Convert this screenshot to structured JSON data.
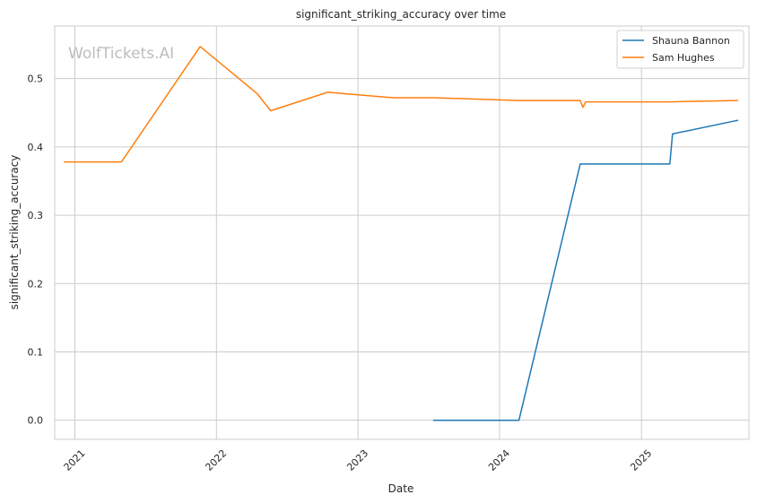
{
  "chart_data": {
    "type": "line",
    "title": "significant_striking_accuracy over time",
    "xlabel": "Date",
    "ylabel": "significant_striking_accuracy",
    "watermark": "WolfTickets.AI",
    "x_axis": "date",
    "xlim": [
      "2020-11-10",
      "2025-10-05"
    ],
    "ylim": [
      -0.028,
      0.577
    ],
    "xticks": [
      {
        "date": "2021-01-01",
        "label": "2021"
      },
      {
        "date": "2022-01-01",
        "label": "2022"
      },
      {
        "date": "2023-01-01",
        "label": "2023"
      },
      {
        "date": "2024-01-01",
        "label": "2024"
      },
      {
        "date": "2025-01-01",
        "label": "2025"
      }
    ],
    "yticks": [
      {
        "value": 0.0,
        "label": "0.0"
      },
      {
        "value": 0.1,
        "label": "0.1"
      },
      {
        "value": 0.2,
        "label": "0.2"
      },
      {
        "value": 0.3,
        "label": "0.3"
      },
      {
        "value": 0.4,
        "label": "0.4"
      },
      {
        "value": 0.5,
        "label": "0.5"
      }
    ],
    "grid": true,
    "legend_position": "top-right",
    "series": [
      {
        "name": "Shauna Bannon",
        "color": "#1f77b4",
        "points": [
          {
            "x": "2023-07-15",
            "y": 0.0
          },
          {
            "x": "2024-02-20",
            "y": 0.0
          },
          {
            "x": "2024-07-27",
            "y": 0.375
          },
          {
            "x": "2025-03-15",
            "y": 0.375
          },
          {
            "x": "2025-03-22",
            "y": 0.419
          },
          {
            "x": "2025-09-06",
            "y": 0.439
          }
        ]
      },
      {
        "name": "Sam Hughes",
        "color": "#ff7f0e",
        "points": [
          {
            "x": "2020-12-05",
            "y": 0.378
          },
          {
            "x": "2021-05-01",
            "y": 0.378
          },
          {
            "x": "2021-11-20",
            "y": 0.547
          },
          {
            "x": "2022-04-16",
            "y": 0.478
          },
          {
            "x": "2022-05-21",
            "y": 0.453
          },
          {
            "x": "2022-10-15",
            "y": 0.48
          },
          {
            "x": "2023-04-01",
            "y": 0.472
          },
          {
            "x": "2023-07-15",
            "y": 0.472
          },
          {
            "x": "2024-02-20",
            "y": 0.468
          },
          {
            "x": "2024-07-27",
            "y": 0.468
          },
          {
            "x": "2024-08-03",
            "y": 0.458
          },
          {
            "x": "2024-08-10",
            "y": 0.466
          },
          {
            "x": "2025-03-15",
            "y": 0.466
          },
          {
            "x": "2025-09-06",
            "y": 0.468
          }
        ]
      }
    ]
  }
}
